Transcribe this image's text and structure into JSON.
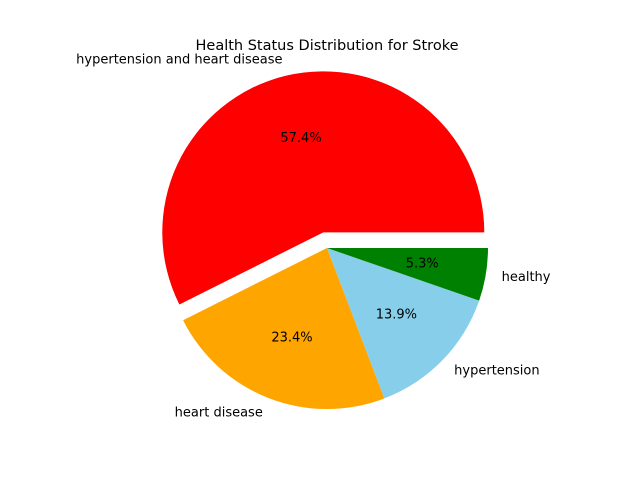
{
  "chart_data": {
    "type": "pie",
    "title": "Health Status Distribution for Stroke",
    "slices": [
      {
        "label": "hypertension and heart disease",
        "value": 57.4,
        "pct_label": "57.4%",
        "color": "#ff0000",
        "explode": 0.1
      },
      {
        "label": "heart disease",
        "value": 23.4,
        "pct_label": "23.4%",
        "color": "#ffa500",
        "explode": 0
      },
      {
        "label": "hypertension",
        "value": 13.9,
        "pct_label": "13.9%",
        "color": "#87ceeb",
        "explode": 0
      },
      {
        "label": "healthy",
        "value": 5.3,
        "pct_label": "5.3%",
        "color": "#008000",
        "explode": 0
      }
    ],
    "start_angle_deg": 0,
    "counterclock": true
  }
}
